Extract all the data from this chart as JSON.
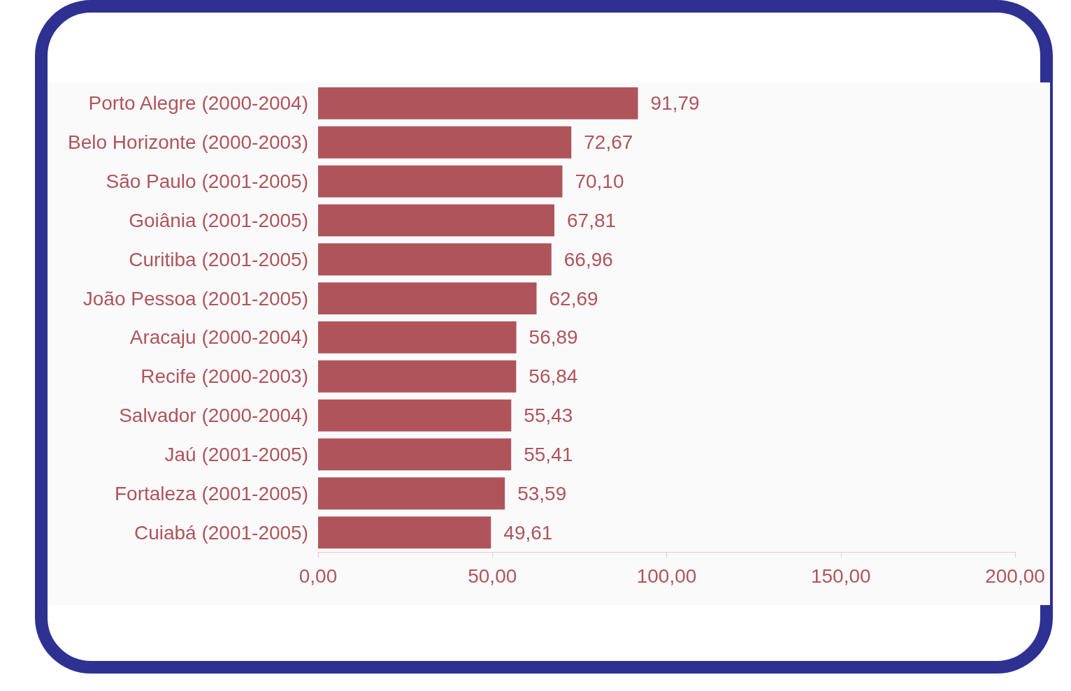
{
  "chart_data": {
    "type": "bar",
    "orientation": "horizontal",
    "categories": [
      "Porto Alegre (2000-2004)",
      "Belo Horizonte (2000-2003)",
      "São Paulo (2001-2005)",
      "Goiânia (2001-2005)",
      "Curitiba (2001-2005)",
      "João Pessoa (2001-2005)",
      "Aracaju (2000-2004)",
      "Recife (2000-2003)",
      "Salvador (2000-2004)",
      "Jaú (2001-2005)",
      "Fortaleza (2001-2005)",
      "Cuiabá (2001-2005)"
    ],
    "values": [
      91.79,
      72.67,
      70.1,
      67.81,
      66.96,
      62.69,
      56.89,
      56.84,
      55.43,
      55.41,
      53.59,
      49.61
    ],
    "value_labels": [
      "91,79",
      "72,67",
      "70,10",
      "67,81",
      "66,96",
      "62,69",
      "56,89",
      "56,84",
      "55,43",
      "55,41",
      "53,59",
      "49,61"
    ],
    "color": "#b0545c",
    "xlim": [
      0,
      200
    ],
    "xticks": [
      {
        "value": 0,
        "label": "0,00"
      },
      {
        "value": 50,
        "label": "50,00"
      },
      {
        "value": 100,
        "label": "100,00"
      },
      {
        "value": 150,
        "label": "150,00"
      },
      {
        "value": 200,
        "label": "200,00"
      }
    ],
    "grid": false
  }
}
